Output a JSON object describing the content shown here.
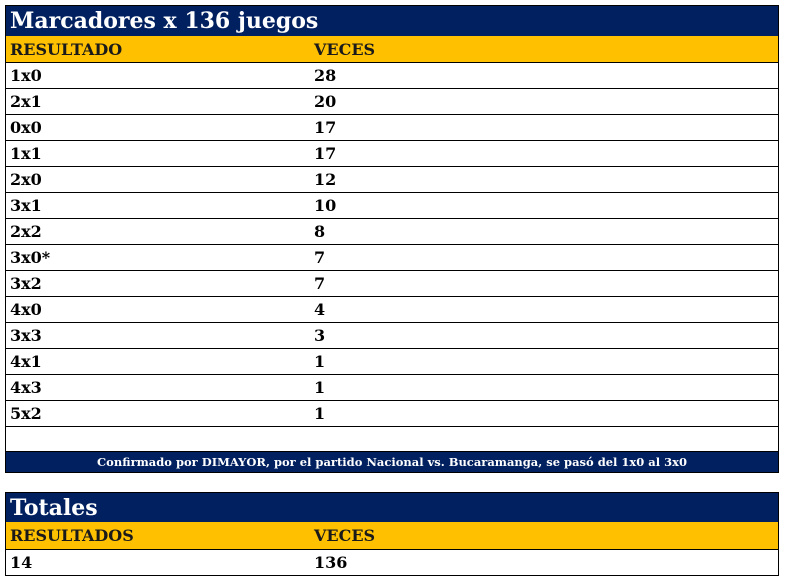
{
  "main_table": {
    "title": "Marcadores x 136 juegos",
    "headers": [
      "RESULTADO",
      "VECES"
    ],
    "rows": [
      {
        "resultado": "1x0",
        "veces": "28"
      },
      {
        "resultado": "2x1",
        "veces": "20"
      },
      {
        "resultado": "0x0",
        "veces": "17"
      },
      {
        "resultado": "1x1",
        "veces": "17"
      },
      {
        "resultado": "2x0",
        "veces": "12"
      },
      {
        "resultado": "3x1",
        "veces": "10"
      },
      {
        "resultado": "2x2",
        "veces": "8"
      },
      {
        "resultado": "3x0*",
        "veces": "7"
      },
      {
        "resultado": "3x2",
        "veces": "7"
      },
      {
        "resultado": "4x0",
        "veces": "4"
      },
      {
        "resultado": "3x3",
        "veces": "3"
      },
      {
        "resultado": "4x1",
        "veces": "1"
      },
      {
        "resultado": "4x3",
        "veces": "1"
      },
      {
        "resultado": "5x2",
        "veces": "1"
      }
    ],
    "footnote": "Confirmado por DIMAYOR, por el partido Nacional vs. Bucaramanga, se pasó del 1x0 al 3x0"
  },
  "totals_table": {
    "title": "Totales",
    "headers": [
      "RESULTADOS",
      "VECES"
    ],
    "row": {
      "resultados": "14",
      "veces": "136"
    }
  },
  "colors": {
    "header_navy": "#002060",
    "header_gold": "#ffc000"
  }
}
